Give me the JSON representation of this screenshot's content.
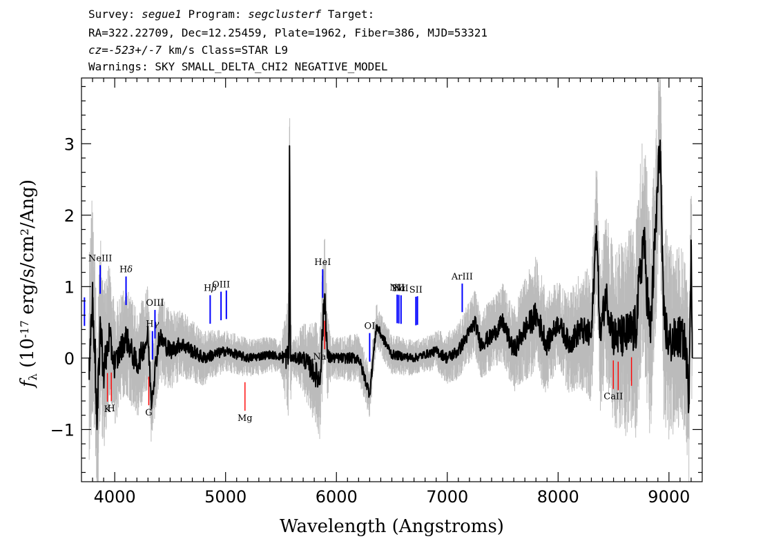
{
  "header": {
    "line1_a": "Survey: ",
    "survey": "segue1",
    "line1_b": " Program: ",
    "program": "segclusterf",
    "line1_c": " Target:",
    "line2": "RA=322.22709, Dec=12.25459, Plate=1962, Fiber=386, MJD=53321",
    "line3_cz": "cz=-523+/-7",
    "line3_rest": " km/s Class=STAR L9",
    "line4": "Warnings: SKY SMALL_DELTA_CHI2 NEGATIVE_MODEL"
  },
  "chart_data": {
    "type": "line",
    "xlabel": "Wavelength (Angstroms)",
    "ylabel": "f_λ (10^-17 erg/s/cm^2/Ang)",
    "xlim": [
      3700,
      9300
    ],
    "ylim": [
      -1.73,
      3.92
    ],
    "x_ticks": [
      4000,
      5000,
      6000,
      7000,
      8000,
      9000
    ],
    "y_ticks": [
      -1,
      0,
      1,
      2,
      3
    ],
    "x_tick_labels": [
      "4000",
      "5000",
      "6000",
      "7000",
      "8000",
      "9000"
    ],
    "y_tick_labels": [
      "−1",
      "0",
      "1",
      "2",
      "3"
    ],
    "colors": {
      "flux": "#000000",
      "error": "#bbbbbb",
      "emission": "#0000ff",
      "absorption": "#ff0000"
    },
    "series": [
      {
        "role": "flux",
        "anchors": [
          [
            3770,
            0.0
          ],
          [
            3800,
            0.8
          ],
          [
            3820,
            0.2
          ],
          [
            3840,
            -1.0
          ],
          [
            3870,
            0.5
          ],
          [
            3900,
            -0.2
          ],
          [
            3950,
            0.3
          ],
          [
            4000,
            -0.1
          ],
          [
            4100,
            0.3
          ],
          [
            4200,
            -0.1
          ],
          [
            4300,
            0.3
          ],
          [
            4330,
            -0.6
          ],
          [
            4400,
            0.3
          ],
          [
            4500,
            0.1
          ],
          [
            4600,
            0.2
          ],
          [
            4700,
            0.1
          ],
          [
            4800,
            0.0
          ],
          [
            5000,
            0.1
          ],
          [
            5200,
            0.0
          ],
          [
            5400,
            0.05
          ],
          [
            5570,
            0.0
          ],
          [
            5577,
            2.97
          ],
          [
            5585,
            0.0
          ],
          [
            5700,
            0.0
          ],
          [
            5850,
            -0.3
          ],
          [
            5895,
            0.9
          ],
          [
            5920,
            0.0
          ],
          [
            6000,
            0.0
          ],
          [
            6200,
            0.0
          ],
          [
            6300,
            -0.5
          ],
          [
            6360,
            0.45
          ],
          [
            6500,
            0.05
          ],
          [
            6700,
            0.0
          ],
          [
            6900,
            0.1
          ],
          [
            7000,
            0.0
          ],
          [
            7100,
            0.1
          ],
          [
            7250,
            0.5
          ],
          [
            7300,
            0.2
          ],
          [
            7400,
            0.3
          ],
          [
            7500,
            0.5
          ],
          [
            7600,
            0.1
          ],
          [
            7700,
            0.4
          ],
          [
            7800,
            0.6
          ],
          [
            7900,
            0.2
          ],
          [
            8000,
            0.5
          ],
          [
            8100,
            0.2
          ],
          [
            8200,
            0.4
          ],
          [
            8300,
            0.3
          ],
          [
            8345,
            1.85
          ],
          [
            8380,
            0.3
          ],
          [
            8430,
            0.9
          ],
          [
            8500,
            0.3
          ],
          [
            8600,
            0.3
          ],
          [
            8700,
            0.4
          ],
          [
            8770,
            1.7
          ],
          [
            8830,
            0.3
          ],
          [
            8880,
            1.8
          ],
          [
            8920,
            3.05
          ],
          [
            8950,
            0.6
          ],
          [
            9000,
            0.2
          ],
          [
            9100,
            0.3
          ],
          [
            9150,
            0.2
          ],
          [
            9180,
            -0.6
          ],
          [
            9200,
            1.65
          ],
          [
            9210,
            0.0
          ]
        ]
      },
      {
        "role": "error",
        "anchors": [
          [
            3770,
            1.4
          ],
          [
            3900,
            1.0
          ],
          [
            4000,
            0.7
          ],
          [
            4300,
            0.6
          ],
          [
            4600,
            0.4
          ],
          [
            5000,
            0.25
          ],
          [
            5500,
            0.2
          ],
          [
            5577,
            0.9
          ],
          [
            5600,
            0.2
          ],
          [
            5890,
            0.8
          ],
          [
            5950,
            0.25
          ],
          [
            6300,
            0.3
          ],
          [
            6400,
            0.25
          ],
          [
            6800,
            0.2
          ],
          [
            7000,
            0.3
          ],
          [
            7300,
            0.4
          ],
          [
            7600,
            0.5
          ],
          [
            7800,
            0.7
          ],
          [
            8000,
            0.5
          ],
          [
            8300,
            0.8
          ],
          [
            8800,
            1.4
          ],
          [
            8950,
            1.2
          ],
          [
            9200,
            1.0
          ]
        ]
      }
    ],
    "emission_lines": [
      {
        "label": "",
        "wave": 3727
      },
      {
        "label": "NeIII",
        "wave": 3869
      },
      {
        "label": "H",
        "sup": "δ",
        "wave": 4102
      },
      {
        "label": "H",
        "sup": "γ",
        "wave": 4340
      },
      {
        "label": "OIII",
        "wave": 4363
      },
      {
        "label": "H",
        "sup": "β",
        "wave": 4861
      },
      {
        "label": "OIII",
        "wave": 4959
      },
      {
        "label": "",
        "wave": 5007
      },
      {
        "label": "HeI",
        "wave": 5876
      },
      {
        "label": "OI",
        "wave": 6300
      },
      {
        "label": "NII",
        "wave": 6548
      },
      {
        "label": "H",
        "sup": "α",
        "wave": 6563
      },
      {
        "label": "NII",
        "wave": 6583
      },
      {
        "label": "SII",
        "wave": 6717
      },
      {
        "label": "",
        "wave": 6731
      },
      {
        "label": "ArIII",
        "wave": 7135
      }
    ],
    "absorption_lines": [
      {
        "label": "K",
        "wave": 3934
      },
      {
        "label": "H",
        "wave": 3969
      },
      {
        "label": "G",
        "wave": 4307
      },
      {
        "label": "Mg",
        "wave": 5175
      },
      {
        "label": "Na D",
        "wave": 5894
      },
      {
        "label": "CaII",
        "wave": 8498
      },
      {
        "label": "",
        "wave": 8542
      },
      {
        "label": "",
        "wave": 8662
      }
    ]
  }
}
